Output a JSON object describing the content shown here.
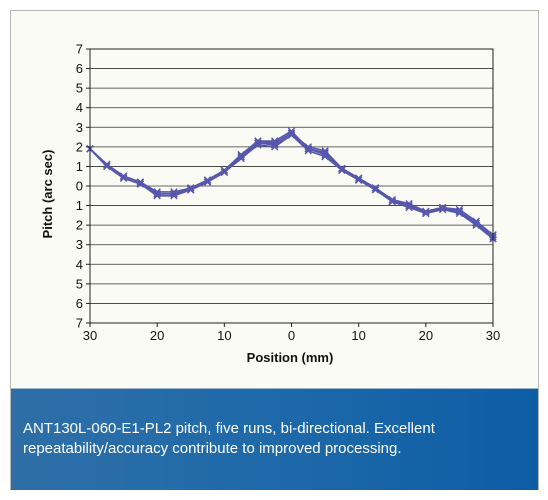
{
  "caption": "ANT130L-060-E1-PL2 pitch, five runs, bi-directional. Excellent repeatability/accuracy contribute to improved processing.",
  "colors": {
    "series": "#5757ac",
    "caption_background": "#1f6aa9",
    "caption_text": "#ffffff"
  },
  "chart_data": {
    "type": "line",
    "title": "",
    "xlabel": "Position (mm)",
    "ylabel": "Pitch (arc sec)",
    "xlim": [
      -30,
      30
    ],
    "ylim": [
      -7,
      7
    ],
    "x_tick_values": [
      -30,
      -20,
      -10,
      0,
      10,
      20,
      30
    ],
    "x_tick_labels": [
      "30",
      "20",
      "10",
      "0",
      "10",
      "20",
      "30"
    ],
    "y_tick_values": [
      7,
      6,
      5,
      4,
      3,
      2,
      1,
      0,
      -1,
      -2,
      -3,
      -4,
      -5,
      -6,
      -7
    ],
    "y_tick_labels": [
      "7",
      "6",
      "5",
      "4",
      "3",
      "2",
      "1",
      "0",
      "1",
      "2",
      "3",
      "4",
      "5",
      "6",
      "7"
    ],
    "grid": "horizontal",
    "legend": "none",
    "marker": "x",
    "x": [
      -30,
      -27.5,
      -25,
      -22.5,
      -20,
      -17.5,
      -15,
      -12.5,
      -10,
      -7.5,
      -5,
      -2.5,
      0,
      2.5,
      5,
      7.5,
      10,
      12.5,
      15,
      17.5,
      20,
      22.5,
      25,
      27.5,
      30
    ],
    "series": [
      {
        "values": [
          1.9,
          1.1,
          0.5,
          0.2,
          -0.4,
          -0.4,
          -0.1,
          0.3,
          0.8,
          1.6,
          2.3,
          2.2,
          2.7,
          1.9,
          1.7,
          0.9,
          0.4,
          -0.1,
          -0.8,
          -1.0,
          -1.4,
          -1.1,
          -1.3,
          -1.9,
          -2.5
        ]
      },
      {
        "values": [
          1.9,
          1.0,
          0.4,
          0.1,
          -0.5,
          -0.5,
          -0.2,
          0.2,
          0.7,
          1.4,
          2.1,
          2.0,
          2.6,
          1.8,
          1.5,
          0.8,
          0.3,
          -0.2,
          -0.8,
          -1.1,
          -1.4,
          -1.2,
          -1.4,
          -2.0,
          -2.7
        ]
      },
      {
        "values": [
          1.9,
          1.1,
          0.5,
          0.2,
          -0.3,
          -0.3,
          -0.1,
          0.3,
          0.8,
          1.5,
          2.2,
          2.2,
          2.7,
          2.0,
          1.8,
          0.9,
          0.4,
          -0.1,
          -0.7,
          -1.0,
          -1.3,
          -1.1,
          -1.3,
          -1.9,
          -2.6
        ]
      },
      {
        "values": [
          1.9,
          1.0,
          0.4,
          0.1,
          -0.4,
          -0.4,
          -0.2,
          0.2,
          0.7,
          1.5,
          2.2,
          2.1,
          2.6,
          1.9,
          1.6,
          0.8,
          0.3,
          -0.1,
          -0.8,
          -1.0,
          -1.4,
          -1.2,
          -1.3,
          -2.0,
          -2.7
        ]
      },
      {
        "values": [
          1.9,
          1.1,
          0.5,
          0.2,
          -0.4,
          -0.4,
          -0.1,
          0.3,
          0.8,
          1.6,
          2.3,
          2.3,
          2.8,
          1.9,
          1.7,
          0.9,
          0.4,
          -0.1,
          -0.7,
          -0.9,
          -1.3,
          -1.1,
          -1.2,
          -1.8,
          -2.5
        ]
      }
    ]
  }
}
